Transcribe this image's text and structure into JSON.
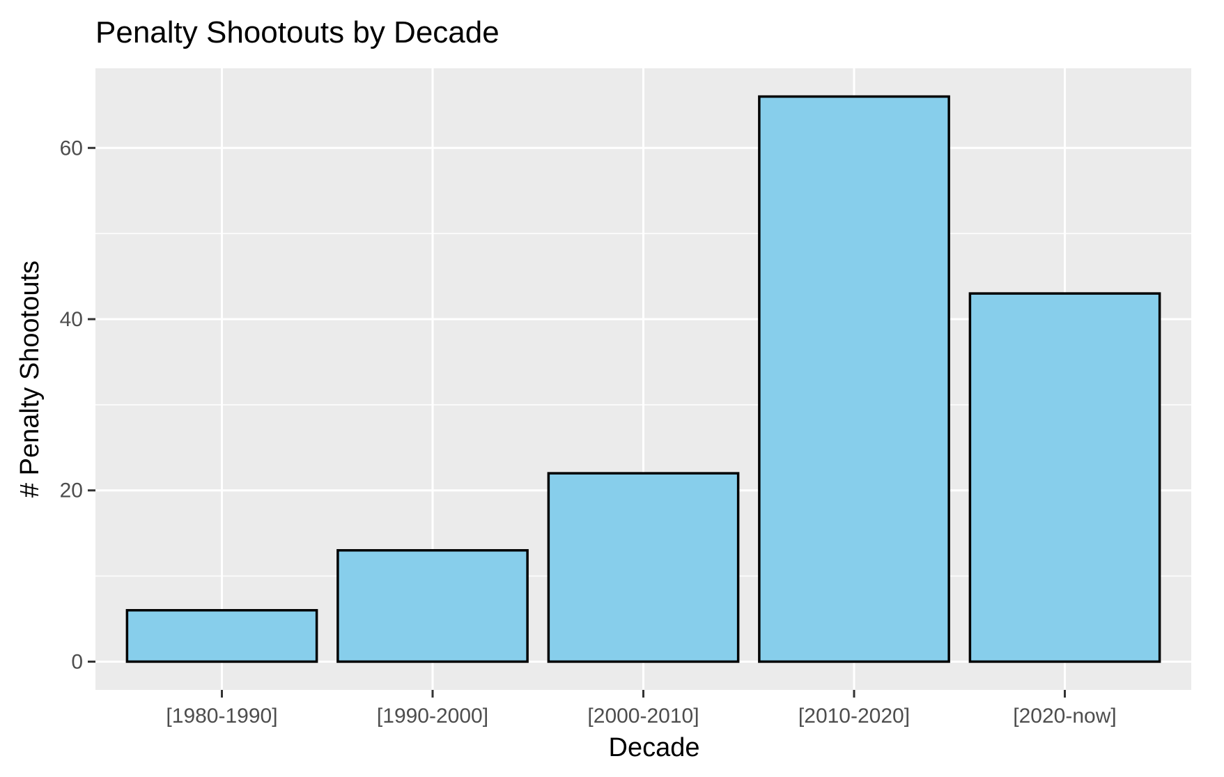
{
  "chart_data": {
    "type": "bar",
    "title": "Penalty Shootouts by Decade",
    "xlabel": "Decade",
    "ylabel": "# Penalty Shootouts",
    "categories": [
      "[1980-1990]",
      "[1990-2000]",
      "[2000-2010]",
      "[2010-2020]",
      "[2020-now]"
    ],
    "values": [
      6,
      13,
      22,
      66,
      43
    ],
    "ylim": [
      -3.3,
      69.3
    ],
    "yticks": [
      0,
      20,
      40,
      60
    ],
    "grid": true,
    "colors": {
      "bar_fill": "#87ceeb",
      "bar_outline": "#000000",
      "panel_background": "#ebebeb",
      "grid": "#ffffff"
    }
  }
}
